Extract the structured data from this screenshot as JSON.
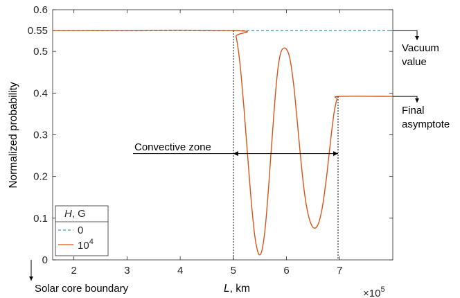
{
  "chart_data": {
    "type": "line",
    "xlabel_italic": "L",
    "xlabel_rest": ", km",
    "ylabel": "Normalized probability",
    "xlim": [
      1.6,
      8.0
    ],
    "ylim": [
      0,
      0.6
    ],
    "x_scale_base": "×10",
    "x_scale_exp": "5",
    "xticks": [
      2,
      3,
      4,
      5,
      6,
      7
    ],
    "yticks": [
      0,
      0.1,
      0.2,
      0.3,
      0.4,
      0.5,
      0.55,
      0.6
    ],
    "ytick_labels": [
      "0",
      "0.1",
      "0.2",
      "0.3",
      "0.4",
      "0.5",
      "0.55",
      "0.6"
    ],
    "grid": false,
    "legend": {
      "placement": "bottom-left",
      "title_italic": "H",
      "title_rest": ", G",
      "entries": [
        {
          "label": "0",
          "color": "#3a9fa8",
          "dash": true
        },
        {
          "label_base": "10",
          "label_exp": "4",
          "color": "#d95319",
          "dash": false
        }
      ]
    },
    "series": [
      {
        "name": "0",
        "color": "#3a9fa8",
        "style": "dashed",
        "x": [
          1.6,
          8.0
        ],
        "y": [
          0.55,
          0.55
        ]
      },
      {
        "name": "10^4",
        "color": "#d95319",
        "style": "solid",
        "x": [
          1.6,
          5.0,
          5.05,
          5.1,
          5.15,
          5.2,
          5.25,
          5.3,
          5.35,
          5.4,
          5.45,
          5.5,
          5.55,
          5.6,
          5.65,
          5.7,
          5.75,
          5.8,
          5.85,
          5.9,
          5.95,
          6.0,
          6.05,
          6.1,
          6.15,
          6.2,
          6.25,
          6.3,
          6.35,
          6.4,
          6.45,
          6.5,
          6.55,
          6.6,
          6.65,
          6.7,
          6.75,
          6.8,
          6.85,
          6.9,
          6.95,
          7.0,
          8.0
        ],
        "y": [
          0.55,
          0.55,
          0.536,
          0.497,
          0.437,
          0.363,
          0.281,
          0.198,
          0.122,
          0.061,
          0.024,
          0.012,
          0.03,
          0.078,
          0.152,
          0.24,
          0.329,
          0.41,
          0.47,
          0.5,
          0.508,
          0.505,
          0.49,
          0.455,
          0.402,
          0.336,
          0.267,
          0.202,
          0.15,
          0.113,
          0.09,
          0.078,
          0.077,
          0.087,
          0.11,
          0.147,
          0.195,
          0.252,
          0.309,
          0.357,
          0.385,
          0.392,
          0.392
        ]
      }
    ],
    "annotations": {
      "vacuum": [
        "Vacuum",
        "value"
      ],
      "final": [
        "Final",
        "asymptote"
      ],
      "convective": "Convective zone",
      "core": "Solar core boundary"
    }
  }
}
